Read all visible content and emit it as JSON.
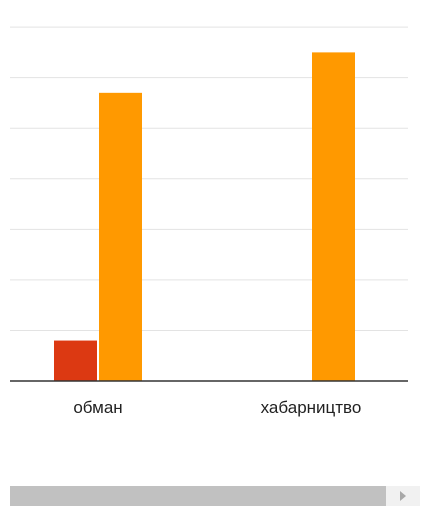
{
  "chart_data": {
    "type": "bar",
    "categories": [
      "обман",
      "хабарництво"
    ],
    "series": [
      {
        "color": "#dc3912",
        "values": [
          8,
          0
        ]
      },
      {
        "color": "#ff9900",
        "values": [
          57,
          65
        ]
      }
    ],
    "ylim": [
      0,
      72
    ],
    "gridlines": [
      10,
      20,
      30,
      40,
      50,
      60,
      70
    ],
    "grid": true,
    "legend": "none"
  },
  "scrollbar": {
    "arrow_icon": "scroll-right-arrow-icon"
  }
}
